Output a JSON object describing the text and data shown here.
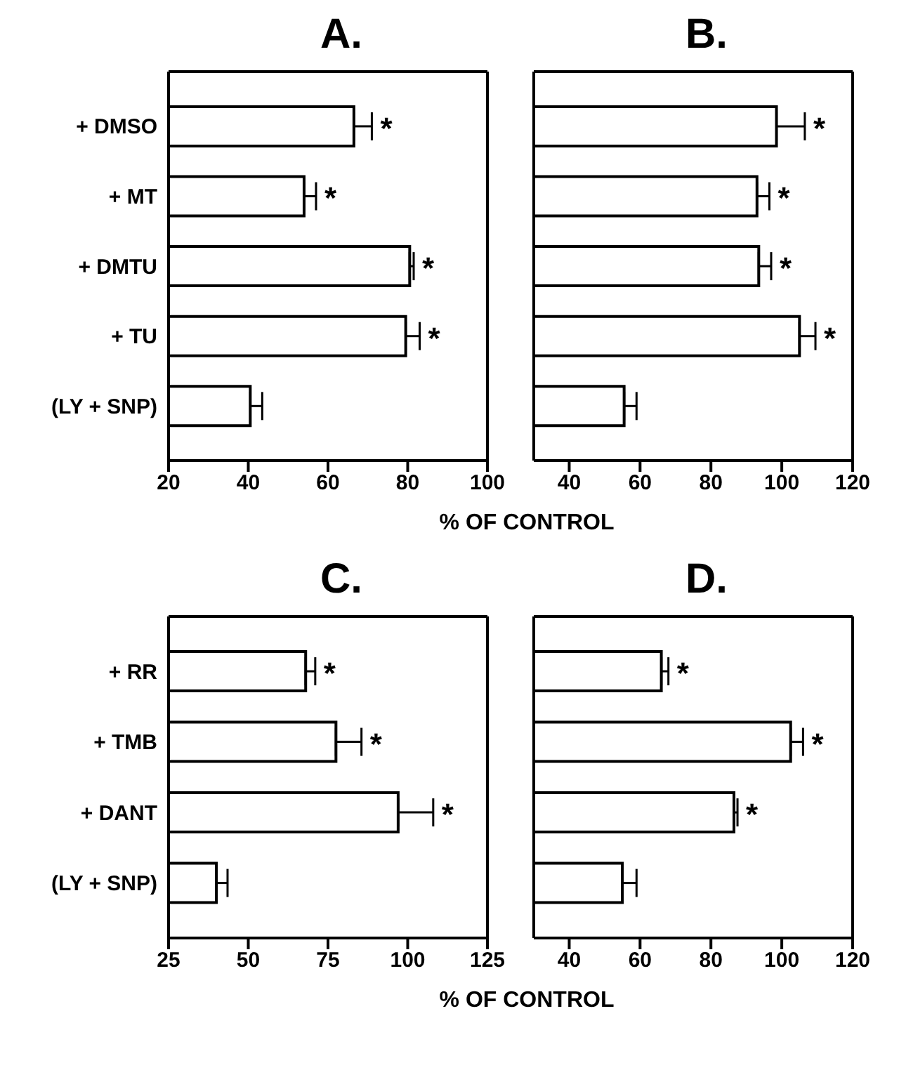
{
  "chart_data": [
    {
      "type": "bar",
      "orientation": "horizontal",
      "title": "A.",
      "xlabel": "% OF CONTROL",
      "categories": [
        "+ DMSO",
        "+ MT",
        "+ DMTU",
        "+ TU",
        "(LY + SNP)"
      ],
      "values": [
        66.5,
        54,
        80.5,
        79.5,
        40.5
      ],
      "errors": [
        [
          66.5,
          71
        ],
        [
          54,
          57
        ],
        [
          80.5,
          81.5
        ],
        [
          79.5,
          83
        ],
        [
          40.5,
          43.5
        ]
      ],
      "color": "#ffffff",
      "xlim": [
        20,
        100
      ],
      "xticks": [
        20,
        40,
        60,
        80,
        100
      ],
      "annotations": [
        {
          "text": "*",
          "x": 71,
          "y": "+ DMSO"
        },
        {
          "text": "*",
          "x": 57,
          "y": "+ MT"
        },
        {
          "text": "*",
          "x": 81.5,
          "y": "+ DMTU"
        },
        {
          "text": "*",
          "x": 83,
          "y": "+ TU"
        }
      ]
    },
    {
      "type": "bar",
      "orientation": "horizontal",
      "title": "B.",
      "tick_labels": "x",
      "categories": [
        "+ DMSO",
        "+ MT",
        "+ DMTU",
        "+ TU",
        "(LY + SNP)"
      ],
      "values": [
        98.5,
        93,
        93.5,
        105,
        55.5
      ],
      "errors": [
        [
          98.5,
          106.5
        ],
        [
          93,
          96.5
        ],
        [
          93.5,
          97
        ],
        [
          105,
          109.5
        ],
        [
          55.5,
          59
        ]
      ],
      "color": "#ffffff",
      "xlim": [
        30,
        120
      ],
      "xticks": [
        40,
        60,
        80,
        100,
        120
      ],
      "annotations": [
        {
          "text": "*",
          "x": 106.5,
          "y": "+ DMSO"
        },
        {
          "text": "*",
          "x": 96.5,
          "y": "+ MT"
        },
        {
          "text": "*",
          "x": 97,
          "y": "+ DMTU"
        },
        {
          "text": "*",
          "x": 109.5,
          "y": "+ TU"
        }
      ]
    },
    {
      "type": "bar",
      "orientation": "horizontal",
      "title": "C.",
      "xlabel": "% OF CONTROL",
      "categories": [
        "+ RR",
        "+ TMB",
        "+ DANT",
        "(LY + SNP)"
      ],
      "values": [
        68,
        77.5,
        97,
        40
      ],
      "errors": [
        [
          68,
          71
        ],
        [
          77.5,
          85.5
        ],
        [
          97,
          108
        ],
        [
          40,
          43.5
        ]
      ],
      "color": "#ffffff",
      "xlim": [
        25,
        125
      ],
      "xticks": [
        25,
        50,
        75,
        100,
        125
      ],
      "annotations": [
        {
          "text": "*",
          "x": 71,
          "y": "+ RR"
        },
        {
          "text": "*",
          "x": 85.5,
          "y": "+ TMB"
        },
        {
          "text": "*",
          "x": 108,
          "y": "+ DANT"
        }
      ]
    },
    {
      "type": "bar",
      "orientation": "horizontal",
      "title": "D.",
      "tick_labels": "x",
      "categories": [
        "+ RR",
        "+ TMB",
        "+ DANT",
        "(LY + SNP)"
      ],
      "values": [
        66,
        102.5,
        86.5,
        55
      ],
      "errors": [
        [
          66,
          68
        ],
        [
          102.5,
          106
        ],
        [
          86.5,
          87.5
        ],
        [
          55,
          59
        ]
      ],
      "color": "#ffffff",
      "xlim": [
        30,
        120
      ],
      "xticks": [
        40,
        60,
        80,
        100,
        120
      ],
      "annotations": [
        {
          "text": "*",
          "x": 68,
          "y": "+ RR"
        },
        {
          "text": "*",
          "x": 106,
          "y": "+ TMB"
        },
        {
          "text": "*",
          "x": 87.5,
          "y": "+ DANT"
        }
      ]
    }
  ]
}
